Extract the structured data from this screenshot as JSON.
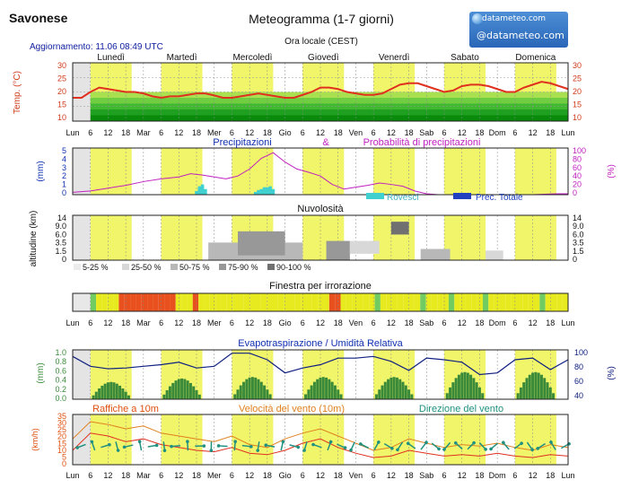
{
  "header": {
    "location": "Savonese",
    "title": "Meteogramma (1-7 giorni)",
    "subtitle": "Ora locale (CEST)",
    "update": "Aggiornamento: 11.06 08:49 UTC",
    "logo_top": "datameteo.com",
    "logo_main": "@datameteo.com"
  },
  "days": [
    "Lunedì",
    "Martedì",
    "Mercoledì",
    "Giovedì",
    "Venerdì",
    "Sabato",
    "Domenica"
  ],
  "time_axis": [
    "Lun",
    "6",
    "12",
    "18",
    "Mar",
    "6",
    "12",
    "18",
    "Mer",
    "6",
    "12",
    "18",
    "Gio",
    "6",
    "12",
    "18",
    "Ven",
    "6",
    "12",
    "18",
    "Sab",
    "6",
    "12",
    "18",
    "Dom",
    "6",
    "12",
    "18",
    "Lun"
  ],
  "colors": {
    "day_band": "#f0f56a",
    "temp_line": "#e0301e",
    "precip_prob": "#c020c0",
    "rain_showers": "#40d0d0",
    "rain_total": "#2040c0",
    "evap_bars": "#3a8a3a",
    "humidity": "#102080",
    "gust": "#e08020",
    "wind_speed": "#e03020",
    "wind_dir": "#209080"
  },
  "chart_data": [
    {
      "type": "line",
      "name": "temperature",
      "ylabel": "Temp. (°C)",
      "ylim": [
        10,
        30
      ],
      "yticks_left": [
        "30",
        "25",
        "20",
        "15",
        "10"
      ],
      "yticks_right": [
        "30",
        "25",
        "20",
        "15",
        "10"
      ],
      "x": [
        0,
        3,
        6,
        9,
        12,
        15,
        18,
        21,
        24,
        27,
        30,
        33,
        36,
        39,
        42,
        45,
        48,
        51,
        54,
        57,
        60,
        63,
        66,
        69,
        72,
        75,
        78,
        81,
        84,
        87,
        90,
        93,
        96,
        99,
        102,
        105,
        108,
        111,
        114,
        117,
        120,
        123,
        126,
        129,
        132,
        135,
        138,
        141,
        144,
        147,
        150,
        153,
        156,
        159,
        162,
        165,
        168
      ],
      "values": [
        18,
        18,
        20,
        21.5,
        21,
        20.5,
        20,
        20,
        19.5,
        18.5,
        18,
        18.5,
        18.5,
        19,
        19.5,
        19.5,
        18.8,
        18,
        18,
        18.5,
        19,
        19.5,
        19,
        18.5,
        18,
        18,
        19,
        20,
        21.5,
        21.5,
        21,
        20,
        19.5,
        19,
        19,
        19.5,
        21,
        22.5,
        23,
        23,
        22,
        21,
        20,
        20.5,
        22,
        22.5,
        22.5,
        22,
        21,
        20,
        20,
        21.5,
        22.5,
        23.5,
        23,
        22,
        21
      ]
    },
    {
      "type": "bar",
      "name": "precipitation",
      "title_left": "Precipitazioni",
      "title_amp": "&",
      "title_right": "Probabilità di precipitazioni",
      "ylabel": "(mm)",
      "ylabel_right": "(%)",
      "ylim": [
        0,
        5
      ],
      "yticks_left": [
        "5",
        "4",
        "3",
        "2",
        "1",
        "0"
      ],
      "yticks_right": [
        "100",
        "80",
        "60",
        "40",
        "20",
        "0"
      ],
      "legend": [
        "Rovesci",
        "Prec. Totale"
      ],
      "showers_x": [
        42,
        43,
        44,
        45,
        62,
        63,
        64,
        65,
        66,
        67,
        68
      ],
      "showers_values": [
        0.4,
        0.9,
        1.1,
        0.6,
        0.3,
        0.5,
        0.6,
        0.8,
        0.8,
        0.9,
        0.6
      ],
      "probability_x": [
        0,
        6,
        12,
        18,
        24,
        30,
        36,
        40,
        44,
        48,
        52,
        56,
        60,
        64,
        68,
        72,
        76,
        80,
        84,
        88,
        92,
        96,
        100,
        104,
        108,
        112,
        116,
        120,
        124,
        128,
        132,
        136,
        140,
        144,
        148,
        152,
        156,
        160,
        164,
        168
      ],
      "probability_values": [
        5,
        8,
        14,
        20,
        28,
        34,
        38,
        45,
        42,
        38,
        34,
        40,
        55,
        78,
        90,
        70,
        55,
        48,
        40,
        22,
        12,
        16,
        20,
        25,
        22,
        18,
        8,
        2,
        0,
        0,
        0,
        0,
        0,
        0,
        0,
        0,
        0,
        1,
        2,
        2
      ]
    },
    {
      "type": "heatmap",
      "name": "cloudiness",
      "title": "Nuvolosità",
      "ylabel": "altitudine (km)",
      "yticks_left": [
        "14",
        "9.0",
        "6.0",
        "3.5",
        "1.5",
        "0"
      ],
      "yticks_right": [
        "14",
        "9.0",
        "6.0",
        "3.5",
        "1.5",
        "0"
      ],
      "legend": [
        "5-25 %",
        "25-50 %",
        "50-75 %",
        "75-90 %",
        "90-100 %"
      ],
      "blocks": [
        {
          "x0": 46,
          "x1": 78,
          "y0": 0,
          "y1": 5.5,
          "level": 2
        },
        {
          "x0": 56,
          "x1": 72,
          "y0": 1.5,
          "y1": 9,
          "level": 3
        },
        {
          "x0": 86,
          "x1": 94,
          "y0": 0,
          "y1": 6,
          "level": 3
        },
        {
          "x0": 94,
          "x1": 104,
          "y0": 2,
          "y1": 6,
          "level": 1
        },
        {
          "x0": 108,
          "x1": 114,
          "y0": 8,
          "y1": 12,
          "level": 4
        },
        {
          "x0": 118,
          "x1": 128,
          "y0": 0,
          "y1": 3.5,
          "level": 2
        },
        {
          "x0": 140,
          "x1": 146,
          "y0": 0,
          "y1": 3,
          "level": 1
        },
        {
          "x0": 170,
          "x1": 176,
          "y0": 0,
          "y1": 3,
          "level": 1
        }
      ]
    },
    {
      "type": "table",
      "name": "spray_window",
      "title": "Finestra per irrorazione",
      "cells": [
        "g",
        "y",
        "y",
        "y",
        "y",
        "r",
        "r",
        "r",
        "r",
        "r",
        "r",
        "r",
        "r",
        "r",
        "r",
        "y",
        "y",
        "y",
        "r",
        "y",
        "y",
        "y",
        "y",
        "y",
        "y",
        "y",
        "y",
        "y",
        "y",
        "y",
        "y",
        "y",
        "y",
        "y",
        "y",
        "y",
        "y",
        "y",
        "y",
        "y",
        "y",
        "y",
        "r",
        "r",
        "y",
        "y",
        "y",
        "y",
        "y",
        "y",
        "g",
        "y",
        "y",
        "y",
        "y",
        "y",
        "y",
        "y",
        "g",
        "y",
        "y",
        "y",
        "y",
        "g",
        "y",
        "y",
        "y",
        "y",
        "y",
        "g",
        "y",
        "y",
        "y",
        "y",
        "y",
        "y",
        "y",
        "y",
        "y",
        "g",
        "y",
        "y",
        "y",
        "y"
      ]
    },
    {
      "type": "area",
      "name": "evapotranspiration",
      "title": "Evapotraspirazione / Umidità Relativa",
      "ylabel": "(mm)",
      "ylabel_right": "(%)",
      "ylim": [
        0,
        1.0
      ],
      "yticks_left": [
        "1.0",
        "0.8",
        "0.6",
        "0.4",
        "0.2",
        "0.0"
      ],
      "yticks_right": [
        "100",
        "80",
        "60",
        "40"
      ],
      "evap_peaks": [
        0.35,
        0.42,
        0.45,
        0.45,
        0.45,
        0.55,
        0.55,
        0.55
      ],
      "humidity_x": [
        0,
        6,
        12,
        18,
        24,
        30,
        36,
        42,
        48,
        54,
        60,
        66,
        72,
        78,
        84,
        90,
        96,
        102,
        108,
        114,
        120,
        126,
        132,
        138,
        144,
        150,
        156,
        162,
        168
      ],
      "humidity_values": [
        92,
        80,
        77,
        78,
        80,
        82,
        85,
        78,
        80,
        96,
        96,
        88,
        72,
        78,
        82,
        90,
        90,
        92,
        86,
        75,
        90,
        88,
        85,
        70,
        72,
        88,
        90,
        76,
        88
      ]
    },
    {
      "type": "line",
      "name": "wind",
      "title_gust": "Raffiche a 10m",
      "title_speed": "Velocità del vento (10m)",
      "title_dir": "Direzione del vento",
      "ylabel": "(km/h)",
      "ylim": [
        0,
        35
      ],
      "yticks_left": [
        "35",
        "30",
        "25",
        "20",
        "15",
        "10",
        "5",
        "0"
      ],
      "gust_x": [
        0,
        6,
        12,
        18,
        24,
        30,
        36,
        42,
        48,
        54,
        60,
        66,
        72,
        78,
        84,
        90,
        96,
        102,
        108,
        114,
        120,
        126,
        132,
        138,
        144,
        150,
        156,
        162,
        168
      ],
      "gust_values": [
        18,
        30,
        28,
        25,
        27,
        22,
        20,
        18,
        16,
        20,
        14,
        12,
        18,
        22,
        25,
        20,
        15,
        10,
        12,
        18,
        15,
        12,
        14,
        13,
        15,
        12,
        10,
        14,
        12
      ],
      "speed_x": [
        0,
        6,
        12,
        18,
        24,
        30,
        36,
        42,
        48,
        54,
        60,
        66,
        72,
        78,
        84,
        90,
        96,
        102,
        108,
        114,
        120,
        126,
        132,
        138,
        144,
        150,
        156,
        162,
        168
      ],
      "speed_values": [
        10,
        22,
        20,
        16,
        18,
        14,
        12,
        10,
        9,
        12,
        8,
        7,
        10,
        15,
        18,
        12,
        8,
        5,
        6,
        10,
        8,
        6,
        7,
        6,
        8,
        6,
        5,
        7,
        6
      ]
    }
  ]
}
